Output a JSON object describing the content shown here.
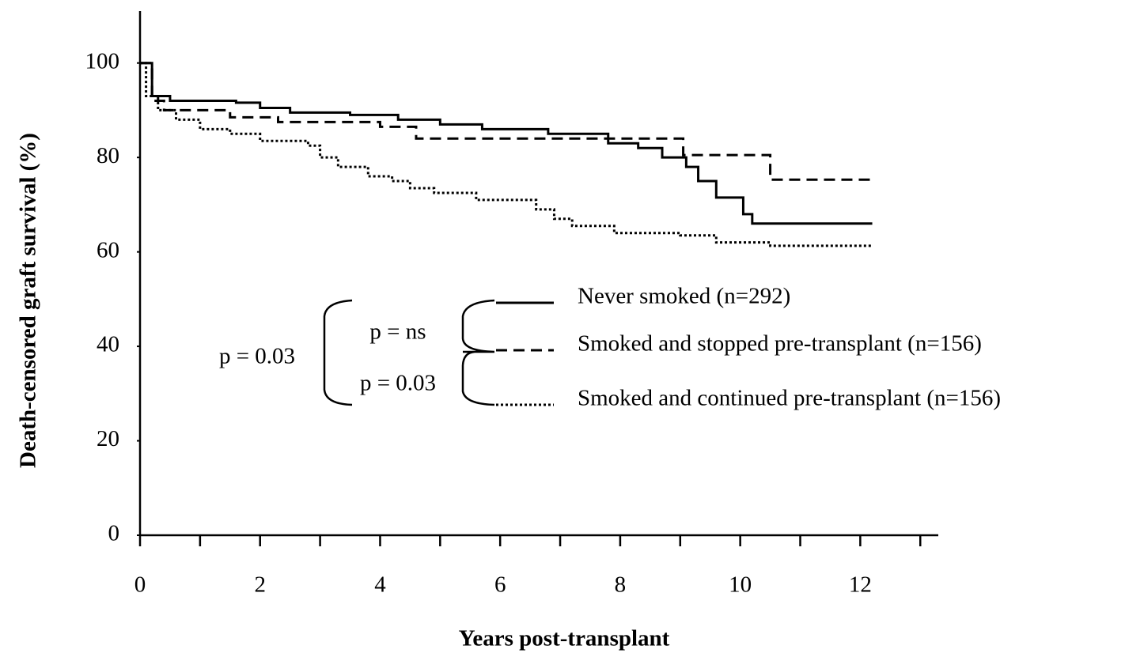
{
  "chart_data": {
    "type": "step",
    "xlabel": "Years post-transplant",
    "ylabel": "Death-censored graft survival (%)",
    "xlim": [
      0,
      13.3
    ],
    "ylim": [
      0,
      111
    ],
    "xticks": [
      0,
      2,
      4,
      6,
      8,
      10,
      12
    ],
    "xminor_ticks": [
      1,
      3,
      5,
      7,
      9,
      11,
      13
    ],
    "yticks": [
      0,
      20,
      40,
      60,
      80,
      100
    ],
    "series": [
      {
        "name": "Never smoked (n=292)",
        "color": "#000000",
        "dash": "solid",
        "x": [
          0,
          0.2,
          0.5,
          1.6,
          2.0,
          2.5,
          3.5,
          4.3,
          5.0,
          5.7,
          6.8,
          7.8,
          8.3,
          8.7,
          9.1,
          9.3,
          9.6,
          10.05,
          10.2,
          12.2
        ],
        "values": [
          100,
          93,
          92,
          91.6,
          90.5,
          89.5,
          89,
          88,
          87,
          86,
          85,
          83,
          82,
          80,
          78,
          75,
          71.5,
          68,
          66,
          66
        ]
      },
      {
        "name": "Smoked and stopped pre-transplant (n=156)",
        "color": "#000000",
        "dash": "dashed",
        "x": [
          0,
          0.2,
          0.4,
          1.5,
          2.3,
          4.0,
          4.6,
          9.05,
          10.5,
          12.2
        ],
        "values": [
          100,
          92,
          90,
          88.5,
          87.5,
          86.5,
          84,
          80.5,
          75.3,
          75.3
        ]
      },
      {
        "name": "Smoked and continued pre-transplant (n=156)",
        "color": "#000000",
        "dash": "dotted",
        "x": [
          0,
          0.1,
          0.3,
          0.6,
          1.0,
          1.5,
          2.0,
          2.8,
          3.0,
          3.3,
          3.8,
          4.2,
          4.5,
          4.9,
          5.6,
          6.6,
          6.9,
          7.2,
          7.9,
          9.0,
          9.6,
          10.5,
          12.2
        ],
        "values": [
          100,
          93,
          90,
          88,
          86,
          85,
          83.5,
          82.5,
          80,
          78,
          76,
          75,
          73.5,
          72.5,
          71,
          69,
          67,
          65.5,
          64,
          63.5,
          62,
          61.3,
          61.3
        ]
      }
    ],
    "annotations": [
      "p = 0.03",
      "p = ns",
      "p = 0.03"
    ]
  }
}
